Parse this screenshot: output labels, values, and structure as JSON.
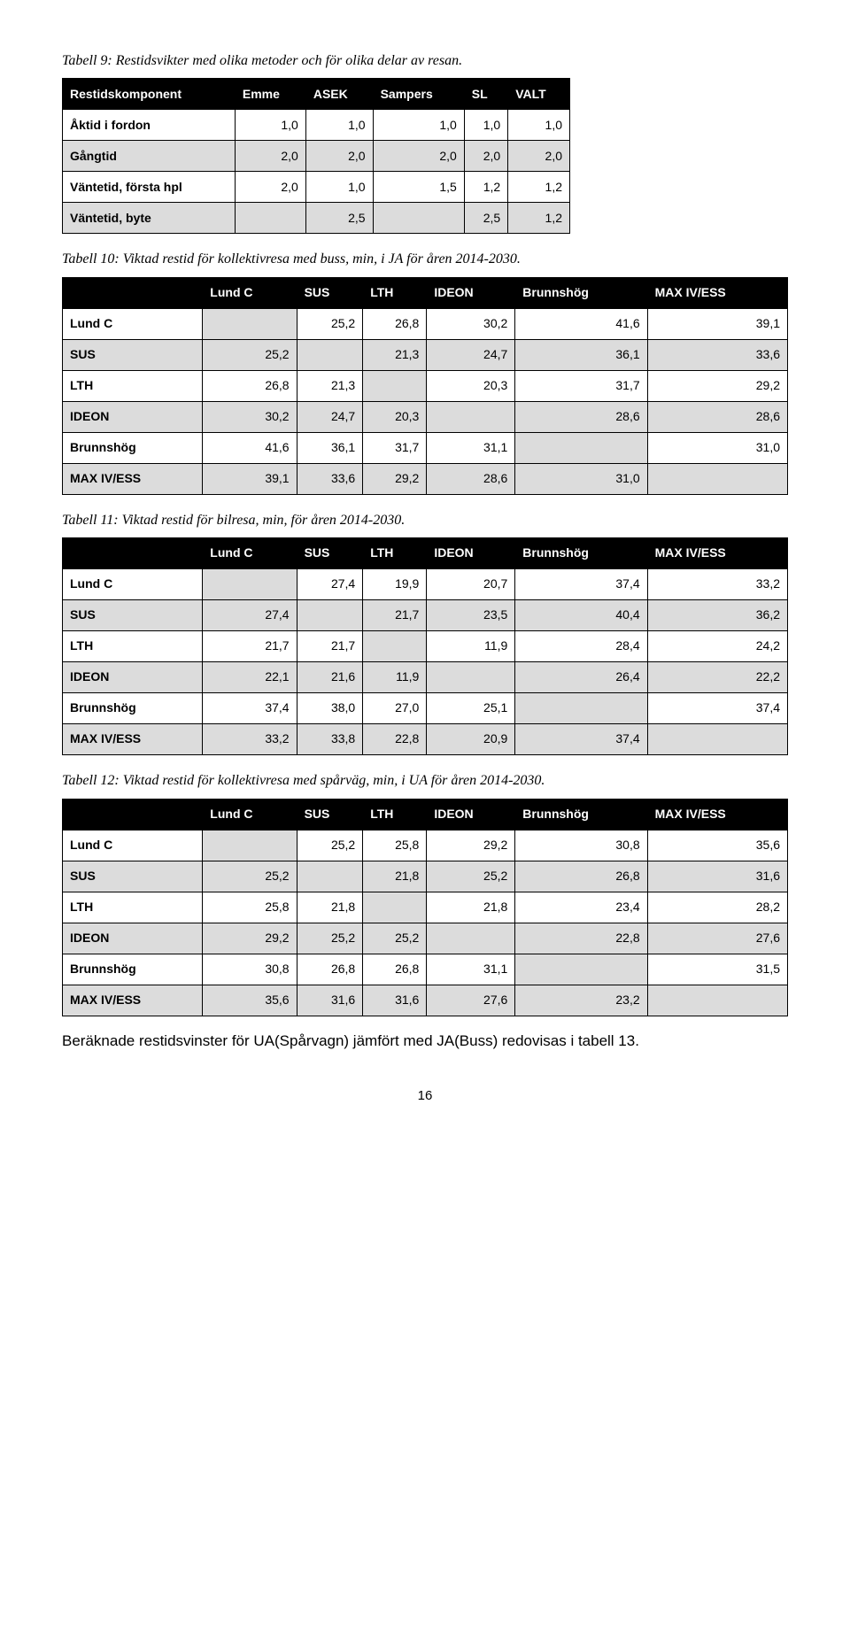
{
  "captions": {
    "t9": "Tabell 9: Restidsvikter med olika metoder och för olika delar av resan.",
    "t10": "Tabell 10: Viktad restid för kollektivresa med buss, min, i JA för åren 2014-2030.",
    "t11": "Tabell 11: Viktad restid för bilresa, min, för åren 2014-2030.",
    "t12": "Tabell 12: Viktad restid för kollektivresa med spårväg, min, i UA för åren 2014-2030."
  },
  "t9": {
    "columns": [
      "Restidskomponent",
      "Emme",
      "ASEK",
      "Sampers",
      "SL",
      "VALT"
    ],
    "rows": [
      {
        "label": "Åktid i fordon",
        "shaded": false,
        "cells": [
          "1,0",
          "1,0",
          "1,0",
          "1,0",
          "1,0"
        ]
      },
      {
        "label": "Gångtid",
        "shaded": true,
        "cells": [
          "2,0",
          "2,0",
          "2,0",
          "2,0",
          "2,0"
        ]
      },
      {
        "label": "Väntetid, första hpl",
        "shaded": false,
        "cells": [
          "2,0",
          "1,0",
          "1,5",
          "1,2",
          "1,2"
        ]
      },
      {
        "label": "Väntetid, byte",
        "shaded": true,
        "cells": [
          "",
          "2,5",
          "",
          "2,5",
          "1,2"
        ]
      }
    ]
  },
  "matrix_cols": [
    "",
    "Lund C",
    "SUS",
    "LTH",
    "IDEON",
    "Brunnshög",
    "MAX IV/ESS"
  ],
  "matrix_rowlabels": [
    "Lund C",
    "SUS",
    "LTH",
    "IDEON",
    "Brunnshög",
    "MAX IV/ESS"
  ],
  "matrix_rowshade": [
    false,
    true,
    false,
    true,
    false,
    true
  ],
  "t10": [
    [
      "",
      "25,2",
      "26,8",
      "30,2",
      "41,6",
      "39,1"
    ],
    [
      "25,2",
      "",
      "21,3",
      "24,7",
      "36,1",
      "33,6"
    ],
    [
      "26,8",
      "21,3",
      "",
      "20,3",
      "31,7",
      "29,2"
    ],
    [
      "30,2",
      "24,7",
      "20,3",
      "",
      "28,6",
      "28,6"
    ],
    [
      "41,6",
      "36,1",
      "31,7",
      "31,1",
      "",
      "31,0"
    ],
    [
      "39,1",
      "33,6",
      "29,2",
      "28,6",
      "31,0",
      ""
    ]
  ],
  "t11": [
    [
      "",
      "27,4",
      "19,9",
      "20,7",
      "37,4",
      "33,2"
    ],
    [
      "27,4",
      "",
      "21,7",
      "23,5",
      "40,4",
      "36,2"
    ],
    [
      "21,7",
      "21,7",
      "",
      "11,9",
      "28,4",
      "24,2"
    ],
    [
      "22,1",
      "21,6",
      "11,9",
      "",
      "26,4",
      "22,2"
    ],
    [
      "37,4",
      "38,0",
      "27,0",
      "25,1",
      "",
      "37,4"
    ],
    [
      "33,2",
      "33,8",
      "22,8",
      "20,9",
      "37,4",
      ""
    ]
  ],
  "t12": [
    [
      "",
      "25,2",
      "25,8",
      "29,2",
      "30,8",
      "35,6"
    ],
    [
      "25,2",
      "",
      "21,8",
      "25,2",
      "26,8",
      "31,6"
    ],
    [
      "25,8",
      "21,8",
      "",
      "21,8",
      "23,4",
      "28,2"
    ],
    [
      "29,2",
      "25,2",
      "25,2",
      "",
      "22,8",
      "27,6"
    ],
    [
      "30,8",
      "26,8",
      "26,8",
      "31,1",
      "",
      "31,5"
    ],
    [
      "35,6",
      "31,6",
      "31,6",
      "27,6",
      "23,2",
      ""
    ]
  ],
  "body_text": "Beräknade restidsvinster för UA(Spårvagn) jämfört med JA(Buss) redovisas i tabell 13.",
  "page_number": "16"
}
